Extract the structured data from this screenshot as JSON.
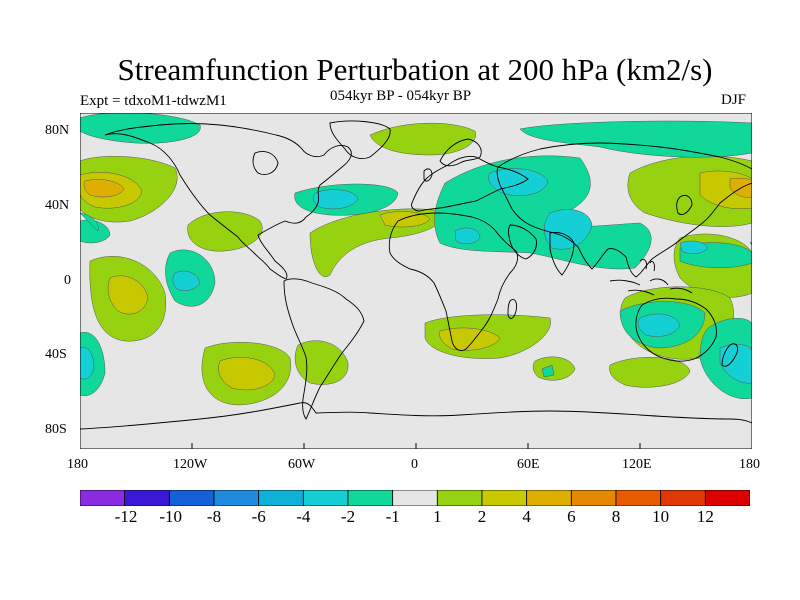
{
  "figure": {
    "title": "Streamfunction Perturbation at 200 hPa (km2/s)",
    "left_label": "Expt = tdxoM1-tdwzM1",
    "center_label": "054kyr BP - 054kyr BP",
    "right_label": "DJF"
  },
  "axes": {
    "lat_ticks": [
      "80N",
      "40N",
      "0",
      "40S",
      "80S"
    ],
    "lon_ticks": [
      "180",
      "120W",
      "60W",
      "0",
      "60E",
      "120E",
      "180"
    ]
  },
  "colorbar": {
    "colors": [
      "#8a2be2",
      "#3b18d8",
      "#1460d6",
      "#1e8ae0",
      "#0fb0d8",
      "#14cfd4",
      "#10d79a",
      "#e6e6e6",
      "#96d20f",
      "#c8c800",
      "#dcaf00",
      "#e68700",
      "#e65a00",
      "#e13700",
      "#dc0000"
    ],
    "labels": [
      "-12",
      "-10",
      "-8",
      "-6",
      "-4",
      "-2",
      "-1",
      "1",
      "2",
      "4",
      "6",
      "8",
      "10",
      "12"
    ]
  },
  "colors": {
    "background": "#e6e6e6",
    "land_outline": "#000000",
    "neg1": "#10d79a",
    "neg2": "#14cfd4",
    "pos1": "#96d20f",
    "pos2": "#c8c800",
    "pos3": "#dcaf00"
  }
}
